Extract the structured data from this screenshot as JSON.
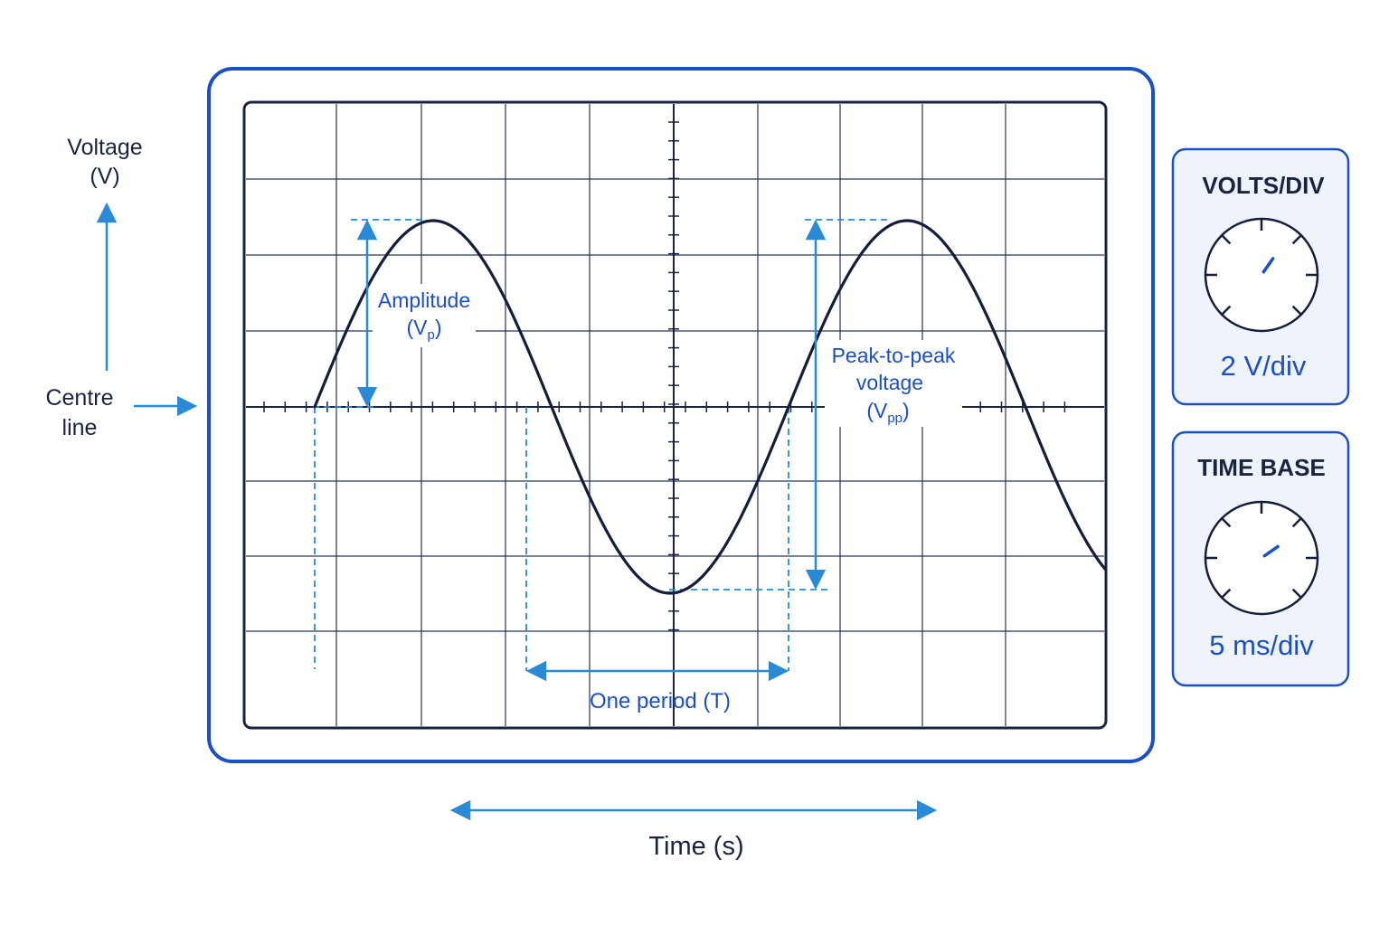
{
  "axis_labels": {
    "voltage_line1": "Voltage",
    "voltage_line2": "(V)",
    "centre_line1": "Centre",
    "centre_line2": "line",
    "time": "Time (s)"
  },
  "annotations": {
    "amplitude_line1": "Amplitude",
    "amplitude_line2_prefix": "(V",
    "amplitude_line2_sub": "p",
    "amplitude_line2_suffix": ")",
    "peak_line1": "Peak-to-peak",
    "peak_line2": "voltage",
    "peak_line3_prefix": "(V",
    "peak_line3_sub": "pp",
    "peak_line3_suffix": ")",
    "period": "One period (T)"
  },
  "controls": {
    "volts_div": {
      "title": "VOLTS/DIV",
      "value": "2 V/div",
      "knob_icon": "dial-knob-icon"
    },
    "time_base": {
      "title": "TIME BASE",
      "value": "5 ms/div",
      "knob_icon": "dial-knob-icon"
    }
  },
  "colors": {
    "frame_blue": "#1d4fc4",
    "accent_blue": "#2a8ad6",
    "trace_navy": "#141d3a",
    "grid_navy": "#2a3558",
    "panel_fill": "#eef3fc"
  }
}
